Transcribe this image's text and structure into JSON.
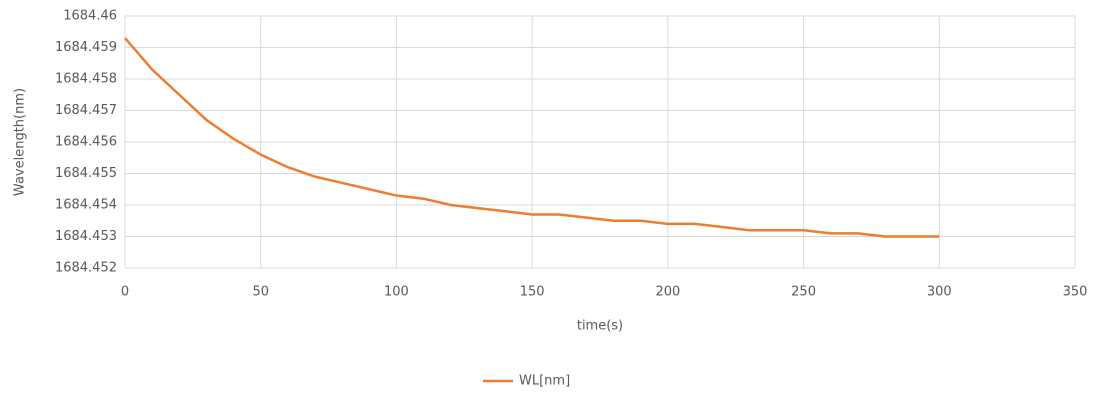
{
  "chart_data": {
    "type": "line",
    "x_label": "time(s)",
    "y_label": "Wavelength(nm)",
    "x": [
      0,
      10,
      20,
      30,
      40,
      50,
      60,
      70,
      80,
      90,
      100,
      110,
      120,
      130,
      140,
      150,
      160,
      170,
      180,
      190,
      200,
      210,
      220,
      230,
      240,
      250,
      260,
      270,
      280,
      290,
      300
    ],
    "series": [
      {
        "name": "WL[nm]",
        "color": "#ed7d31",
        "values": [
          1684.4593,
          1684.4583,
          1684.4575,
          1684.4567,
          1684.4561,
          1684.4556,
          1684.4552,
          1684.4549,
          1684.4547,
          1684.4545,
          1684.4543,
          1684.4542,
          1684.454,
          1684.4539,
          1684.4538,
          1684.4537,
          1684.4537,
          1684.4536,
          1684.4535,
          1684.4535,
          1684.4534,
          1684.4534,
          1684.4533,
          1684.4532,
          1684.4532,
          1684.4532,
          1684.4531,
          1684.4531,
          1684.453,
          1684.453,
          1684.453
        ]
      }
    ],
    "xlim": [
      0,
      350
    ],
    "xticks": [
      0,
      50,
      100,
      150,
      200,
      250,
      300,
      350
    ],
    "ylim": [
      1684.452,
      1684.46
    ],
    "yticks": [
      1684.452,
      1684.453,
      1684.454,
      1684.455,
      1684.456,
      1684.457,
      1684.458,
      1684.459,
      1684.46
    ],
    "grid": true,
    "legend": "bottom"
  }
}
